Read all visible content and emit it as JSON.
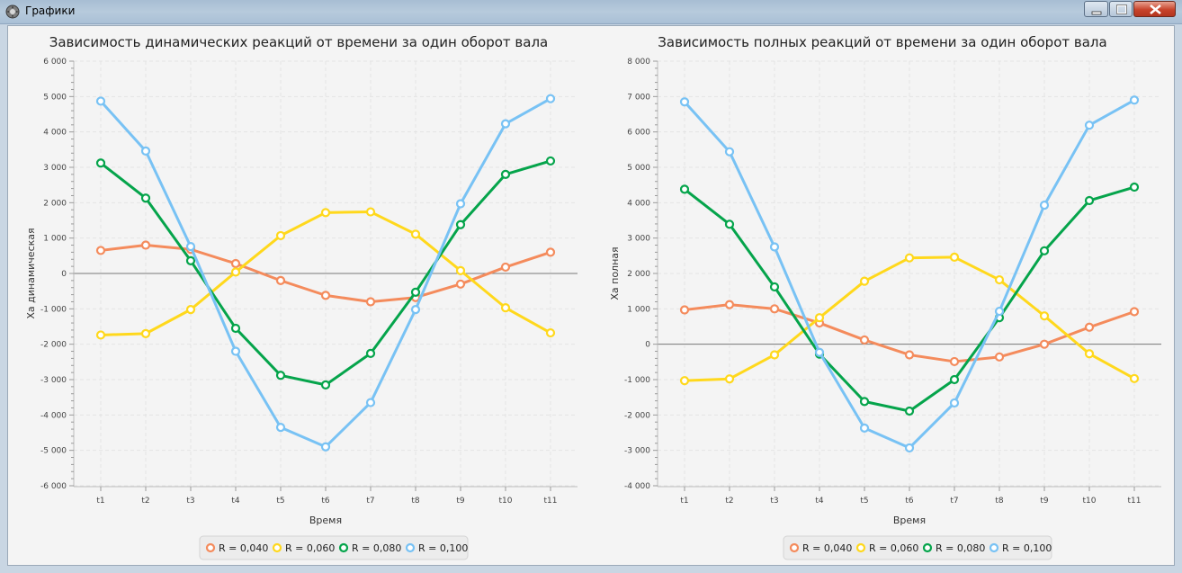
{
  "window": {
    "title": "Графики",
    "icon": "app-icon",
    "controls": [
      "minimize-icon",
      "maximize-icon",
      "close-icon"
    ]
  },
  "colors": {
    "R = 0,040": "#f48b5c",
    "R = 0,060": "#ffd81c",
    "R = 0,080": "#05a44b",
    "R = 0,100": "#78c2f4",
    "background": "#f4f4f4",
    "grid": "#e3e3e3",
    "zero_line": "#777777"
  },
  "chart_data": [
    {
      "type": "line",
      "title": "Зависимость динамических реакций от времени за один оборот вала",
      "xlabel": "Время",
      "ylabel": "Xa динамическая",
      "categories": [
        "t1",
        "t2",
        "t3",
        "t4",
        "t5",
        "t6",
        "t7",
        "t8",
        "t9",
        "t10",
        "t11"
      ],
      "ylim": [
        -6000,
        6000
      ],
      "yticks": [
        -6000,
        -5000,
        -4000,
        -3000,
        -2000,
        -1000,
        0,
        1000,
        2000,
        3000,
        4000,
        5000,
        6000
      ],
      "ytick_labels": [
        "-6 000",
        "-5 000",
        "-4 000",
        "-3 000",
        "-2 000",
        "-1 000",
        "0",
        "1 000",
        "2 000",
        "3 000",
        "4 000",
        "5 000",
        "6 000"
      ],
      "grid": true,
      "legend_position": "bottom",
      "series": [
        {
          "name": "R = 0,040",
          "values": [
            650,
            800,
            680,
            280,
            -200,
            -620,
            -800,
            -680,
            -300,
            180,
            600
          ]
        },
        {
          "name": "R = 0,060",
          "values": [
            -1740,
            -1700,
            -1020,
            40,
            1070,
            1720,
            1740,
            1110,
            80,
            -970,
            -1680
          ]
        },
        {
          "name": "R = 0,080",
          "values": [
            3120,
            2130,
            360,
            -1550,
            -2880,
            -3150,
            -2260,
            -530,
            1380,
            2800,
            3180
          ]
        },
        {
          "name": "R = 0,100",
          "values": [
            4870,
            3460,
            760,
            -2200,
            -4350,
            -4900,
            -3650,
            -1020,
            1970,
            4230,
            4940
          ]
        }
      ]
    },
    {
      "type": "line",
      "title": "Зависимость полных реакций от времени за один оборот вала",
      "xlabel": "Время",
      "ylabel": "Xa полная",
      "categories": [
        "t1",
        "t2",
        "t3",
        "t4",
        "t5",
        "t6",
        "t7",
        "t8",
        "t9",
        "t10",
        "t11"
      ],
      "ylim": [
        -4000,
        8000
      ],
      "yticks": [
        -4000,
        -3000,
        -2000,
        -1000,
        0,
        1000,
        2000,
        3000,
        4000,
        5000,
        6000,
        7000,
        8000
      ],
      "ytick_labels": [
        "-4 000",
        "-3 000",
        "-2 000",
        "-1 000",
        "0",
        "1 000",
        "2 000",
        "3 000",
        "4 000",
        "5 000",
        "6 000",
        "7 000",
        "8 000"
      ],
      "grid": true,
      "legend_position": "bottom",
      "series": [
        {
          "name": "R = 0,040",
          "values": [
            970,
            1120,
            1000,
            600,
            120,
            -300,
            -490,
            -360,
            0,
            480,
            920
          ]
        },
        {
          "name": "R = 0,060",
          "values": [
            -1030,
            -980,
            -300,
            750,
            1780,
            2440,
            2460,
            1820,
            800,
            -270,
            -970
          ]
        },
        {
          "name": "R = 0,080",
          "values": [
            4380,
            3390,
            1620,
            -280,
            -1620,
            -1890,
            -1000,
            750,
            2640,
            4060,
            4440
          ]
        },
        {
          "name": "R = 0,100",
          "values": [
            6850,
            5440,
            2750,
            -230,
            -2370,
            -2930,
            -1660,
            930,
            3930,
            6190,
            6900
          ]
        }
      ]
    }
  ]
}
